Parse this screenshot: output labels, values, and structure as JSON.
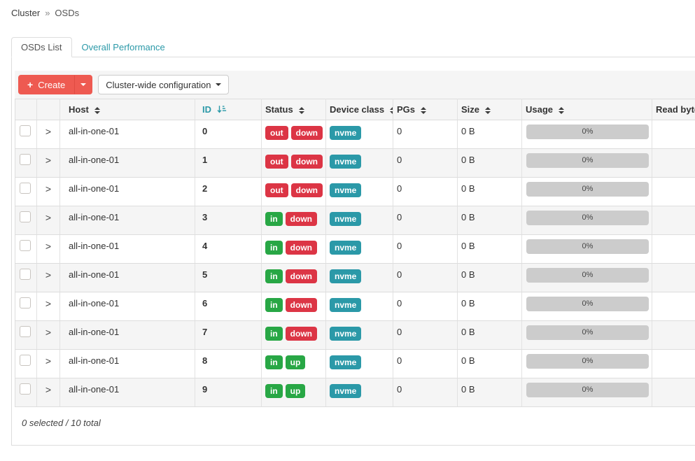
{
  "breadcrumb": {
    "items": [
      "Cluster",
      "OSDs"
    ],
    "separator": "»"
  },
  "tabs": {
    "osds_list": "OSDs List",
    "overall_performance": "Overall Performance"
  },
  "toolbar": {
    "create_label": "Create",
    "cluster_wide_label": "Cluster-wide configuration"
  },
  "icons": {
    "plus": "+",
    "expand_chevron": ">"
  },
  "table": {
    "columns": [
      {
        "label": "",
        "name": "select"
      },
      {
        "label": "",
        "name": "expand"
      },
      {
        "label": "Host",
        "sortable": true
      },
      {
        "label": "ID",
        "sortable": true,
        "sorted": "asc"
      },
      {
        "label": "Status",
        "sortable": true
      },
      {
        "label": "Device class",
        "sortable": true
      },
      {
        "label": "PGs",
        "sortable": true
      },
      {
        "label": "Size",
        "sortable": true
      },
      {
        "label": "Usage",
        "sortable": true
      },
      {
        "label": "Read bytes",
        "sortable": true
      }
    ],
    "status_colors": {
      "in": "#28a745",
      "up": "#28a745",
      "out": "#dc3545",
      "down": "#dc3545"
    },
    "device_class_color": "#2b99a8",
    "rows": [
      {
        "host": "all-in-one-01",
        "id": "0",
        "status": [
          "out",
          "down"
        ],
        "device_class": "nvme",
        "pgs": "0",
        "size": "0 B",
        "usage": "0%",
        "read_bytes": ""
      },
      {
        "host": "all-in-one-01",
        "id": "1",
        "status": [
          "out",
          "down"
        ],
        "device_class": "nvme",
        "pgs": "0",
        "size": "0 B",
        "usage": "0%",
        "read_bytes": ""
      },
      {
        "host": "all-in-one-01",
        "id": "2",
        "status": [
          "out",
          "down"
        ],
        "device_class": "nvme",
        "pgs": "0",
        "size": "0 B",
        "usage": "0%",
        "read_bytes": ""
      },
      {
        "host": "all-in-one-01",
        "id": "3",
        "status": [
          "in",
          "down"
        ],
        "device_class": "nvme",
        "pgs": "0",
        "size": "0 B",
        "usage": "0%",
        "read_bytes": ""
      },
      {
        "host": "all-in-one-01",
        "id": "4",
        "status": [
          "in",
          "down"
        ],
        "device_class": "nvme",
        "pgs": "0",
        "size": "0 B",
        "usage": "0%",
        "read_bytes": ""
      },
      {
        "host": "all-in-one-01",
        "id": "5",
        "status": [
          "in",
          "down"
        ],
        "device_class": "nvme",
        "pgs": "0",
        "size": "0 B",
        "usage": "0%",
        "read_bytes": ""
      },
      {
        "host": "all-in-one-01",
        "id": "6",
        "status": [
          "in",
          "down"
        ],
        "device_class": "nvme",
        "pgs": "0",
        "size": "0 B",
        "usage": "0%",
        "read_bytes": ""
      },
      {
        "host": "all-in-one-01",
        "id": "7",
        "status": [
          "in",
          "down"
        ],
        "device_class": "nvme",
        "pgs": "0",
        "size": "0 B",
        "usage": "0%",
        "read_bytes": ""
      },
      {
        "host": "all-in-one-01",
        "id": "8",
        "status": [
          "in",
          "up"
        ],
        "device_class": "nvme",
        "pgs": "0",
        "size": "0 B",
        "usage": "0%",
        "read_bytes": ""
      },
      {
        "host": "all-in-one-01",
        "id": "9",
        "status": [
          "in",
          "up"
        ],
        "device_class": "nvme",
        "pgs": "0",
        "size": "0 B",
        "usage": "0%",
        "read_bytes": ""
      }
    ]
  },
  "footer": {
    "selection_summary": "0 selected / 10 total"
  },
  "colors": {
    "accent_red": "#ee5a51",
    "link_teal": "#2b99a8",
    "badge_danger": "#dc3545",
    "badge_success": "#28a745"
  }
}
